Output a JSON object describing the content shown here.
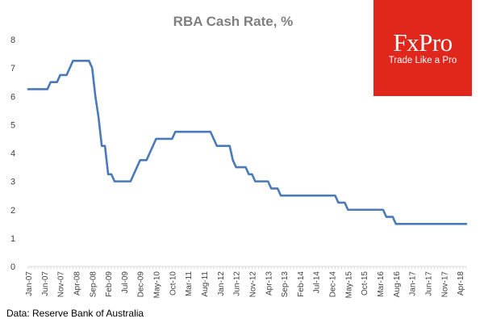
{
  "brand": {
    "name": "FxPro",
    "tagline": "Trade Like a Pro",
    "color": "#e1261c"
  },
  "source": "Data: Reserve Bank of Australia",
  "chart_data": {
    "type": "line",
    "title": "RBA Cash Rate, %",
    "xlabel": "",
    "ylabel": "",
    "ylim": [
      0,
      8
    ],
    "yticks": [
      0,
      1,
      2,
      3,
      4,
      5,
      6,
      7,
      8
    ],
    "grid": false,
    "x_tick_labels": [
      "Jan-07",
      "Jun-07",
      "Nov-07",
      "Apr-08",
      "Sep-08",
      "Feb-09",
      "Jul-09",
      "Dec-09",
      "May-10",
      "Oct-10",
      "Mar-11",
      "Aug-11",
      "Jan-12",
      "Jun-12",
      "Nov-12",
      "Apr-13",
      "Sep-13",
      "Feb-14",
      "Jul-14",
      "Dec-14",
      "May-15",
      "Oct-15",
      "Mar-16",
      "Aug-16",
      "Jan-17",
      "Jun-17",
      "Nov-17",
      "Apr-18"
    ],
    "series": [
      {
        "name": "RBA Cash Rate",
        "color": "#4a7ab8",
        "points": [
          [
            "Jan-07",
            6.25
          ],
          [
            "Jul-07",
            6.25
          ],
          [
            "Aug-07",
            6.5
          ],
          [
            "Oct-07",
            6.5
          ],
          [
            "Nov-07",
            6.75
          ],
          [
            "Jan-08",
            6.75
          ],
          [
            "Feb-08",
            7.0
          ],
          [
            "Mar-08",
            7.25
          ],
          [
            "Aug-08",
            7.25
          ],
          [
            "Sep-08",
            7.0
          ],
          [
            "Oct-08",
            6.0
          ],
          [
            "Nov-08",
            5.25
          ],
          [
            "Dec-08",
            4.25
          ],
          [
            "Jan-09",
            4.25
          ],
          [
            "Feb-09",
            3.25
          ],
          [
            "Mar-09",
            3.25
          ],
          [
            "Apr-09",
            3.0
          ],
          [
            "Sep-09",
            3.0
          ],
          [
            "Oct-09",
            3.25
          ],
          [
            "Nov-09",
            3.5
          ],
          [
            "Dec-09",
            3.75
          ],
          [
            "Feb-10",
            3.75
          ],
          [
            "Mar-10",
            4.0
          ],
          [
            "Apr-10",
            4.25
          ],
          [
            "May-10",
            4.5
          ],
          [
            "Oct-10",
            4.5
          ],
          [
            "Nov-10",
            4.75
          ],
          [
            "Oct-11",
            4.75
          ],
          [
            "Nov-11",
            4.5
          ],
          [
            "Dec-11",
            4.25
          ],
          [
            "Apr-12",
            4.25
          ],
          [
            "May-12",
            3.75
          ],
          [
            "Jun-12",
            3.5
          ],
          [
            "Sep-12",
            3.5
          ],
          [
            "Oct-12",
            3.25
          ],
          [
            "Nov-12",
            3.25
          ],
          [
            "Dec-12",
            3.0
          ],
          [
            "Apr-13",
            3.0
          ],
          [
            "May-13",
            2.75
          ],
          [
            "Jul-13",
            2.75
          ],
          [
            "Aug-13",
            2.5
          ],
          [
            "Jan-15",
            2.5
          ],
          [
            "Feb-15",
            2.25
          ],
          [
            "Apr-15",
            2.25
          ],
          [
            "May-15",
            2.0
          ],
          [
            "Apr-16",
            2.0
          ],
          [
            "May-16",
            1.75
          ],
          [
            "Jul-16",
            1.75
          ],
          [
            "Aug-16",
            1.5
          ],
          [
            "Jun-18",
            1.5
          ]
        ]
      }
    ]
  }
}
